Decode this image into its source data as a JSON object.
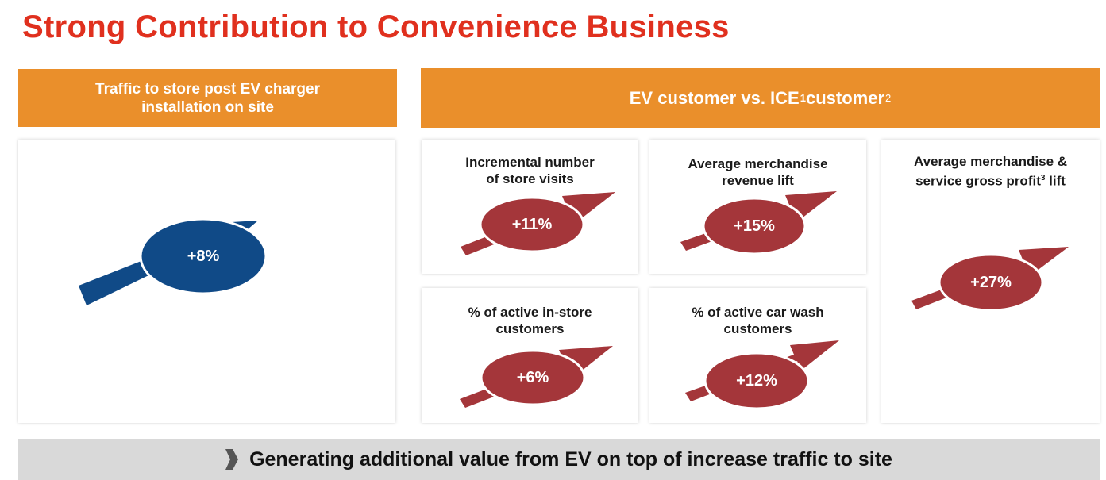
{
  "title": "Strong Contribution to Convenience Business",
  "left_panel": {
    "header": "Traffic to store post EV charger installation on site",
    "value": "+8%"
  },
  "right_panel": {
    "header_main": "EV customer vs. ICE",
    "header_sup1": "1",
    "header_tail": " customer",
    "header_sup2": "2",
    "cards": [
      {
        "label": "Incremental number of store visits",
        "value": "+11%"
      },
      {
        "label": "Average merchandise revenue lift",
        "value": "+15%"
      },
      {
        "label_main": "Average merchandise & service gross profit",
        "label_sup": "3",
        "label_tail": " lift",
        "value": "+27%"
      },
      {
        "label": "% of active in-store customers",
        "value": "+6%"
      },
      {
        "label": "% of active car wash customers",
        "value": "+12%"
      }
    ]
  },
  "footer": {
    "text": "Generating additional value from EV on top of increase traffic to site"
  },
  "colors": {
    "title": "#e0301e",
    "header_bg": "#ea8f2b",
    "blue": "#104a87",
    "red": "#a4363a",
    "footer_bg": "#d9d9d9"
  }
}
